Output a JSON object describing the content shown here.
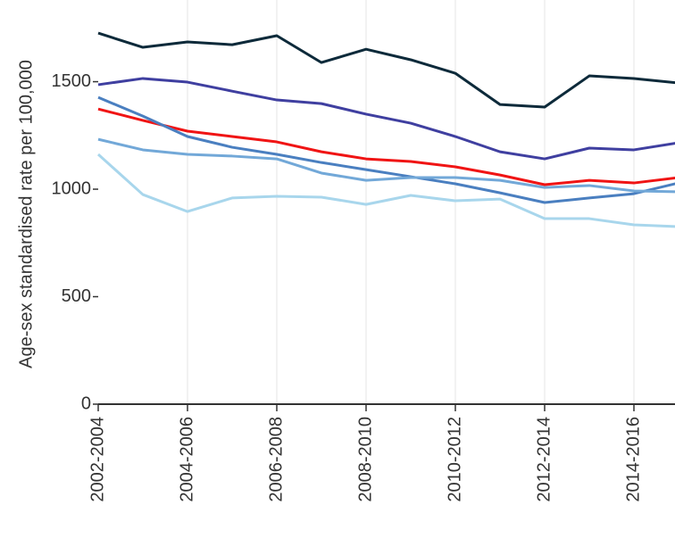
{
  "chart_data": {
    "type": "line",
    "y_label": "Age-sex standardised rate per 100,000",
    "categories": [
      "2002-2004",
      null,
      "2004-2006",
      null,
      "2006-2008",
      null,
      "2008-2010",
      null,
      "2010-2012",
      null,
      "2012-2014",
      null,
      "2014-2016",
      null
    ],
    "series": [
      {
        "color": "#0d2a3a",
        "values": [
          1726,
          1660,
          1685,
          1672,
          1714,
          1589,
          1651,
          1602,
          1539,
          1394,
          1382,
          1527,
          1515,
          1494
        ]
      },
      {
        "color": "#3f3fa0",
        "values": [
          1486,
          1515,
          1498,
          1456,
          1415,
          1398,
          1349,
          1307,
          1245,
          1174,
          1141,
          1191,
          1183,
          1216
        ]
      },
      {
        "color": "#f01414",
        "values": [
          1373,
          1320,
          1270,
          1245,
          1220,
          1174,
          1141,
          1129,
          1104,
          1066,
          1021,
          1041,
          1029,
          1054
        ]
      },
      {
        "color": "#4a7fc0",
        "values": [
          1427,
          1340,
          1245,
          1195,
          1162,
          1124,
          1091,
          1058,
          1025,
          983,
          938,
          959,
          979,
          1029
        ]
      },
      {
        "color": "#72a8d8",
        "values": [
          1232,
          1183,
          1162,
          1154,
          1141,
          1075,
          1041,
          1054,
          1054,
          1041,
          1008,
          1017,
          992,
          988
        ]
      },
      {
        "color": "#a8d6ec",
        "values": [
          1162,
          975,
          896,
          959,
          967,
          963,
          929,
          971,
          946,
          954,
          863,
          863,
          834,
          826
        ]
      }
    ],
    "ylim": [
      0,
      1880
    ],
    "yticks": [
      0,
      500,
      1000,
      1500
    ],
    "grid": true
  }
}
